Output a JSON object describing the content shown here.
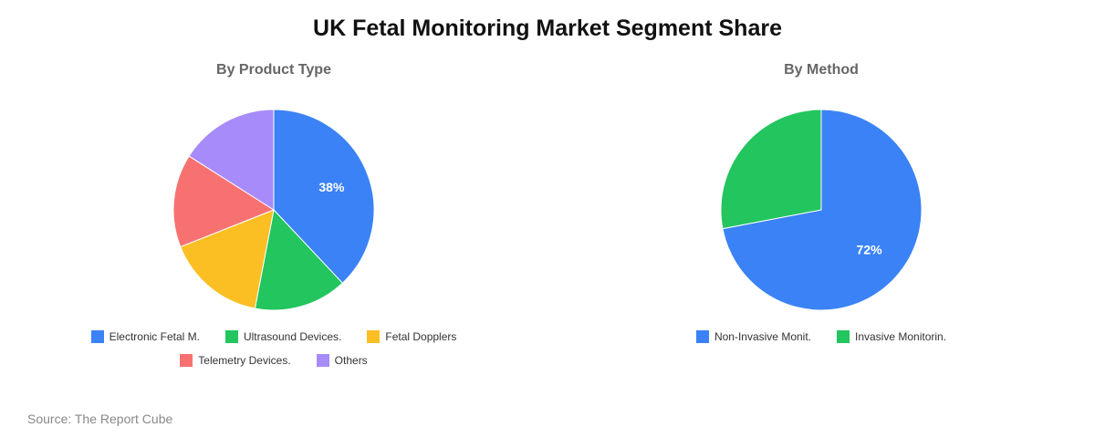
{
  "header": {
    "title": "UK Fetal Monitoring Market Segment Share"
  },
  "footer": {
    "source": "Source: The Report Cube"
  },
  "chart_data": [
    {
      "type": "pie",
      "title": "By Product Type",
      "categories": [
        "Electronic Fetal M.",
        "Ultrasound Devices.",
        "Fetal Dopplers",
        "Telemetry Devices.",
        "Others"
      ],
      "values": [
        38,
        15,
        16,
        15,
        16
      ],
      "colors": [
        "#3b82f6",
        "#22c55e",
        "#fbbf24",
        "#f87171",
        "#a78bfa"
      ],
      "data_labels": [
        "38%",
        "",
        "",
        "",
        ""
      ],
      "legend_position": "bottom"
    },
    {
      "type": "pie",
      "title": "By Method",
      "categories": [
        "Non-Invasive Monit.",
        "Invasive Monitorin."
      ],
      "values": [
        72,
        28
      ],
      "colors": [
        "#3b82f6",
        "#22c55e"
      ],
      "data_labels": [
        "72%",
        ""
      ],
      "legend_position": "bottom"
    }
  ]
}
